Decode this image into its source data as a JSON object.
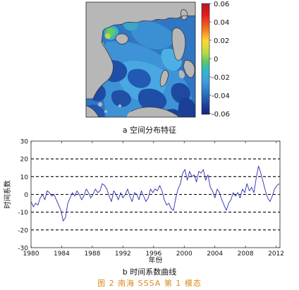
{
  "panel_a": {
    "caption": "a 空间分布特征",
    "colorbar": {
      "ticks": [
        "0.06",
        "0.04",
        "0.02",
        "0",
        "-0.02",
        "-0.04",
        "-0.06"
      ]
    }
  },
  "panel_b": {
    "caption": "b 时间系数曲线"
  },
  "figure_title": "图 2   南海 SSSA 第 1 模态",
  "chart_data": {
    "type": "line",
    "title": "",
    "xlabel": "年份",
    "ylabel": "时间系数",
    "xlim": [
      1980,
      2012.5
    ],
    "ylim": [
      -30,
      30
    ],
    "xticks": [
      "1980",
      "1984",
      "1988",
      "1992",
      "1996",
      "2000",
      "2004",
      "2008",
      "2012"
    ],
    "yticks": [
      "30",
      "20",
      "10",
      "0",
      "-10",
      "-20",
      "-30"
    ],
    "reference_lines": [
      20,
      10,
      0,
      -10,
      -20
    ],
    "series": [
      {
        "color": "#2b2bb0",
        "x": [
          1980.0,
          1980.3,
          1980.6,
          1980.9,
          1981.2,
          1981.5,
          1981.8,
          1982.1,
          1982.4,
          1982.7,
          1983.0,
          1983.3,
          1983.6,
          1983.9,
          1984.2,
          1984.5,
          1984.8,
          1985.1,
          1985.4,
          1985.7,
          1986.0,
          1986.3,
          1986.6,
          1986.9,
          1987.2,
          1987.5,
          1987.8,
          1988.1,
          1988.4,
          1988.7,
          1989.0,
          1989.3,
          1989.6,
          1989.9,
          1990.2,
          1990.5,
          1990.8,
          1991.1,
          1991.4,
          1991.7,
          1992.0,
          1992.3,
          1992.6,
          1992.9,
          1993.2,
          1993.5,
          1993.8,
          1994.1,
          1994.4,
          1994.7,
          1995.0,
          1995.3,
          1995.6,
          1995.9,
          1996.2,
          1996.5,
          1996.8,
          1997.1,
          1997.4,
          1997.7,
          1998.0,
          1998.3,
          1998.6,
          1998.9,
          1999.2,
          1999.5,
          1999.8,
          2000.1,
          2000.4,
          2000.7,
          2001.0,
          2001.3,
          2001.6,
          2001.9,
          2002.2,
          2002.5,
          2002.8,
          2003.1,
          2003.4,
          2003.7,
          2004.0,
          2004.3,
          2004.6,
          2004.9,
          2005.2,
          2005.5,
          2005.8,
          2006.1,
          2006.4,
          2006.7,
          2007.0,
          2007.3,
          2007.6,
          2007.9,
          2008.2,
          2008.5,
          2008.8,
          2009.1,
          2009.4,
          2009.7,
          2010.0,
          2010.3,
          2010.6,
          2010.9,
          2011.2,
          2011.5,
          2011.8,
          2012.1,
          2012.4
        ],
        "values": [
          -4,
          -7,
          -5,
          -6,
          -2,
          0,
          -3,
          2,
          1,
          -1,
          0,
          -3,
          -6,
          -9,
          -15,
          -13,
          -5,
          -2,
          1,
          -1,
          2,
          0,
          -3,
          -1,
          3,
          1,
          -2,
          0,
          3,
          1,
          2,
          6,
          5,
          3,
          -1,
          -4,
          2,
          0,
          -3,
          1,
          -2,
          0,
          3,
          -1,
          -4,
          1,
          0,
          -3,
          2,
          -1,
          -4,
          -2,
          3,
          1,
          3,
          2,
          5,
          2,
          -3,
          -6,
          -5,
          -8,
          -9,
          -2,
          3,
          6,
          12,
          14,
          8,
          13,
          10,
          11,
          7,
          13,
          12,
          14,
          8,
          11,
          4,
          2,
          -2,
          3,
          1,
          -3,
          -6,
          -9,
          -5,
          -3,
          1,
          -1,
          1,
          -2,
          3,
          1,
          6,
          2,
          4,
          1,
          9,
          16,
          12,
          7,
          2,
          -2,
          -4,
          -1,
          3,
          5,
          6
        ]
      }
    ]
  }
}
